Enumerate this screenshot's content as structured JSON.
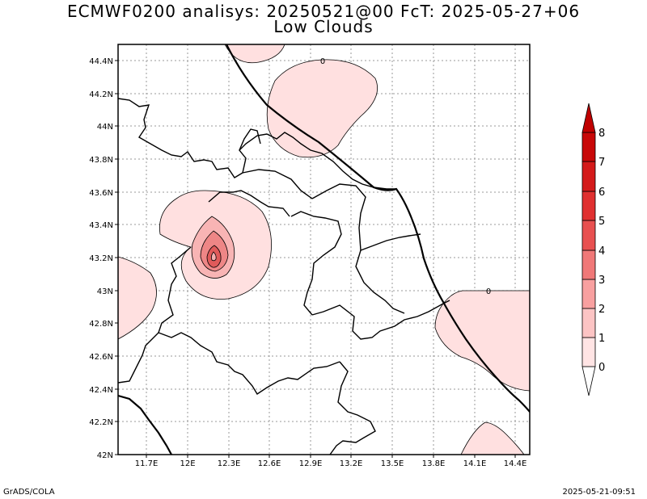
{
  "header": {
    "title_line1": "ECMWF0200 analisys: 20250521@00 FcT: 2025-05-27+06",
    "title_line2": "Low Clouds"
  },
  "footer": {
    "left": "GrADS/COLA",
    "right": "2025-05-21-09:51"
  },
  "map": {
    "x_ticks": [
      "11.7E",
      "12E",
      "12.3E",
      "12.6E",
      "12.9E",
      "13.2E",
      "13.5E",
      "13.8E",
      "14.1E",
      "14.4E"
    ],
    "y_ticks": [
      "44.4N",
      "44.2N",
      "44N",
      "43.8N",
      "43.6N",
      "43.4N",
      "43.2N",
      "43N",
      "42.8N",
      "42.6N",
      "42.4N",
      "42.2N",
      "42N"
    ],
    "contour_labels": [
      "0",
      "0"
    ],
    "fill_colors": [
      "#ffe0e0",
      "#f8b4b4",
      "#ee8686",
      "#e05a5a",
      "#d02a2a",
      "#c00808"
    ]
  },
  "colorbar": {
    "labels": [
      "0",
      "1",
      "2",
      "3",
      "4",
      "5",
      "6",
      "7",
      "8"
    ],
    "colors": [
      "#ffffff",
      "#ffe4e4",
      "#fcc4c4",
      "#f8a0a0",
      "#f07878",
      "#e85050",
      "#e03030",
      "#d41a1a",
      "#c80808"
    ]
  }
}
